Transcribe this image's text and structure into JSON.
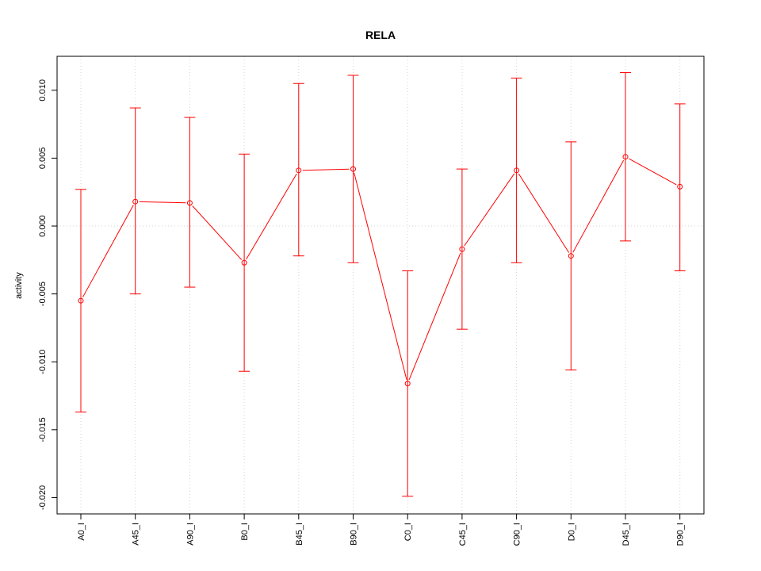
{
  "chart_data": {
    "type": "line",
    "title": "RELA",
    "xlabel": "",
    "ylabel": "activity",
    "categories": [
      "A0_I",
      "A45_I",
      "A90_I",
      "B0_I",
      "B45_I",
      "B90_I",
      "C0_I",
      "C45_I",
      "C90_I",
      "D0_I",
      "D45_I",
      "D90_I"
    ],
    "series": [
      {
        "values": [
          -0.0055,
          0.0018,
          0.0017,
          -0.0027,
          0.0041,
          0.0042,
          -0.0116,
          -0.0017,
          0.0041,
          -0.0022,
          0.0051,
          0.0029
        ],
        "upper": [
          0.0027,
          0.0087,
          0.008,
          0.0053,
          0.0105,
          0.0111,
          -0.0033,
          0.0042,
          0.0109,
          0.0062,
          0.0113,
          0.009
        ],
        "lower": [
          -0.0137,
          -0.005,
          -0.0045,
          -0.0107,
          -0.0022,
          -0.0027,
          -0.0199,
          -0.0076,
          -0.0027,
          -0.0106,
          -0.0011,
          -0.0033
        ]
      }
    ],
    "yticks": [
      -0.02,
      -0.015,
      -0.01,
      -0.005,
      0.0,
      0.005,
      0.01
    ],
    "ytick_labels": [
      "-0.020",
      "-0.015",
      "-0.010",
      "-0.005",
      "0.000",
      "0.005",
      "0.010"
    ],
    "ylim": [
      -0.0212,
      0.0125
    ],
    "grid": true,
    "colors": {
      "series": "#ff0000",
      "grid": "#d3d3d3",
      "axis": "#000000"
    }
  }
}
